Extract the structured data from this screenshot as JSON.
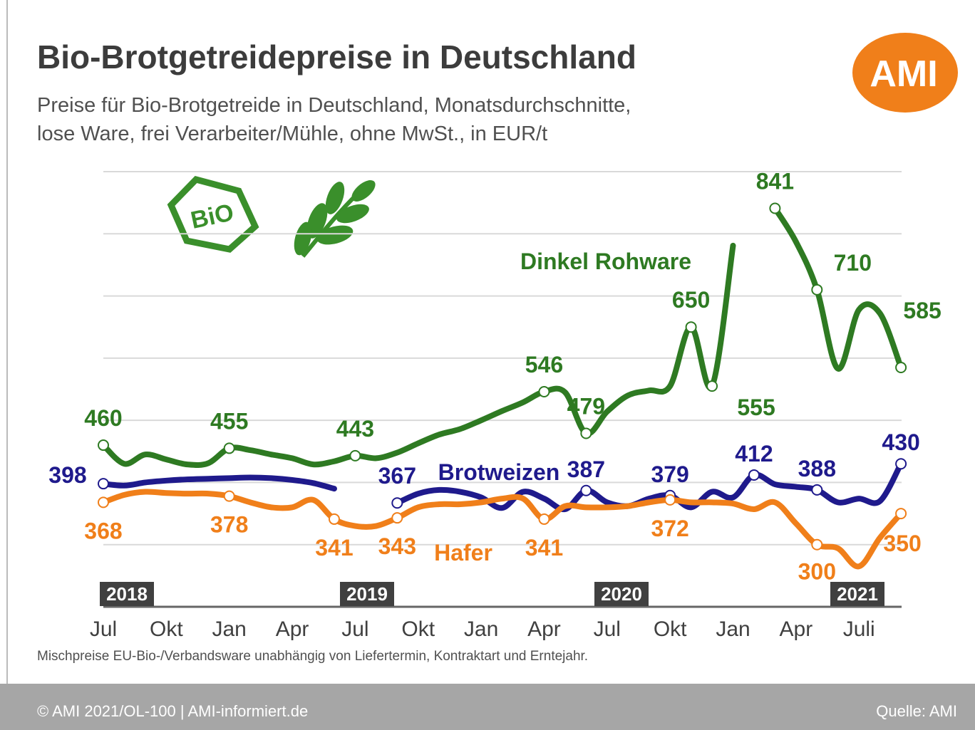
{
  "chart_data": {
    "type": "line",
    "title": "Bio-Brotgetreidepreise in Deutschland",
    "subtitle_lines": [
      "Preise für Bio-Brotgetreide in Deutschland, Monatsdurchschnitte,",
      "lose Ware, frei Verarbeiter/Mühle, ohne MwSt., in EUR/t"
    ],
    "logo": "AMI",
    "icon_text": "BiO",
    "note": "Mischpreise EU-Bio-/Verbandsware unabhängig von Liefertermin, Kontraktart und Erntejahr.",
    "copyright": "© AMI 2021/OL-100 | AMI-informiert.de",
    "source": "Quelle: AMI",
    "years": [
      "2018",
      "2019",
      "2020",
      "2021"
    ],
    "categories": [
      "Jul",
      null,
      null,
      "Okt",
      null,
      null,
      "Jan",
      null,
      null,
      "Apr",
      null,
      null,
      "Jul",
      null,
      null,
      "Okt",
      null,
      null,
      "Jan",
      null,
      null,
      "Apr",
      null,
      null,
      "Jul",
      null,
      null,
      "Okt",
      null,
      null,
      "Jan",
      null,
      null,
      "Apr",
      null,
      null,
      "Juli",
      null,
      null
    ],
    "ylim": [
      200,
      900
    ],
    "yticks": [
      200,
      300,
      400,
      500,
      600,
      700,
      800,
      900
    ],
    "grid": true,
    "series": [
      {
        "name": "Dinkel Rohware",
        "color": "#2e7a22",
        "values": [
          460,
          430,
          445,
          437,
          429,
          431,
          455,
          452,
          445,
          439,
          429,
          434,
          443,
          439,
          448,
          463,
          477,
          486,
          500,
          515,
          529,
          546,
          545,
          479,
          514,
          540,
          548,
          555,
          650,
          555,
          781,
          null,
          841,
          787,
          710,
          583,
          678,
          672,
          585
        ],
        "value_labels": [
          "460",
          null,
          null,
          null,
          null,
          null,
          "455",
          null,
          null,
          null,
          null,
          null,
          "443",
          null,
          null,
          null,
          null,
          null,
          null,
          null,
          null,
          "546",
          null,
          "479",
          null,
          null,
          null,
          null,
          "650",
          "555",
          null,
          null,
          "841",
          null,
          "710",
          null,
          null,
          null,
          "585"
        ]
      },
      {
        "name": "Brotweizen",
        "color": "#1f1a8c",
        "values": [
          398,
          395,
          400,
          403,
          405,
          406,
          407,
          408,
          407,
          404,
          399,
          390,
          null,
          null,
          367,
          382,
          388,
          385,
          376,
          359,
          385,
          374,
          357,
          387,
          368,
          362,
          374,
          379,
          360,
          385,
          376,
          412,
          397,
          393,
          388,
          368,
          374,
          370,
          430
        ],
        "value_labels": [
          "398",
          null,
          null,
          null,
          null,
          null,
          null,
          null,
          null,
          null,
          null,
          null,
          null,
          null,
          "367",
          null,
          null,
          null,
          null,
          null,
          null,
          null,
          null,
          "387",
          null,
          null,
          null,
          "379",
          null,
          null,
          null,
          "412",
          null,
          null,
          "388",
          null,
          null,
          null,
          "430"
        ]
      },
      {
        "name": "Hafer",
        "color": "#f07f1a",
        "values": [
          368,
          380,
          385,
          383,
          382,
          382,
          378,
          368,
          360,
          360,
          372,
          341,
          330,
          330,
          343,
          360,
          365,
          365,
          368,
          374,
          374,
          341,
          362,
          360,
          360,
          362,
          368,
          372,
          368,
          368,
          366,
          357,
          368,
          334,
          300,
          294,
          265,
          311,
          350
        ],
        "value_labels": [
          "368",
          null,
          null,
          null,
          null,
          null,
          "378",
          null,
          null,
          null,
          null,
          "341",
          null,
          null,
          "343",
          null,
          null,
          null,
          null,
          null,
          null,
          "341",
          null,
          null,
          null,
          null,
          null,
          "372",
          null,
          null,
          null,
          null,
          null,
          null,
          "300",
          null,
          null,
          null,
          "350"
        ]
      }
    ]
  }
}
